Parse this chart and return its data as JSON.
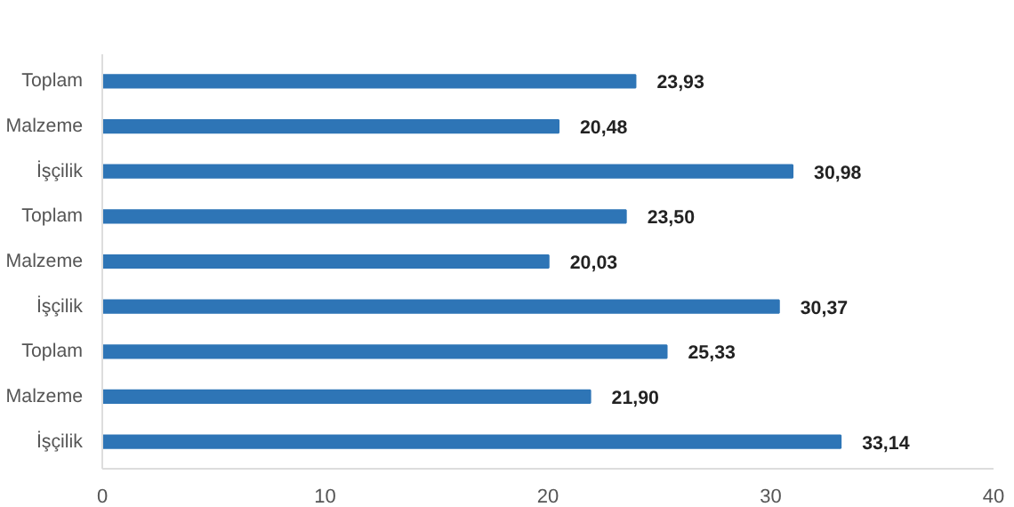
{
  "chart_data": {
    "type": "bar",
    "orientation": "horizontal",
    "categories": [
      "Toplam",
      "Malzeme",
      "İşçilik",
      "Toplam",
      "Malzeme",
      "İşçilik",
      "Toplam",
      "Malzeme",
      "İşçilik"
    ],
    "values": [
      23.93,
      20.48,
      30.98,
      23.5,
      20.03,
      30.37,
      25.33,
      21.9,
      33.14
    ],
    "value_labels": [
      "23,93",
      "20,48",
      "30,98",
      "23,50",
      "20,03",
      "30,37",
      "25,33",
      "21,90",
      "33,14"
    ],
    "color": "#2e75b6",
    "xlim": [
      0,
      40
    ],
    "xticks": [
      0,
      10,
      20,
      30,
      40
    ]
  }
}
